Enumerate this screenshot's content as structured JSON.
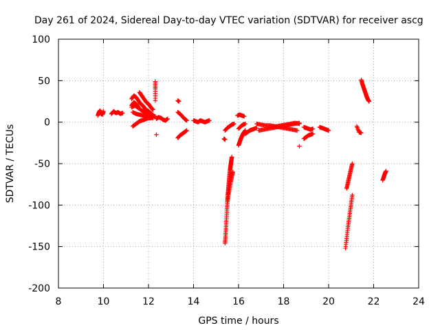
{
  "chart_data": {
    "type": "scatter",
    "title": "Day 261 of 2024, Sidereal Day-to-day VTEC variation (SDTVAR) for receiver ascg",
    "xlabel": "GPS time / hours",
    "ylabel": "SDTVAR / TECUs",
    "xlim": [
      8,
      24
    ],
    "ylim": [
      -200,
      100
    ],
    "xticks": [
      8,
      10,
      12,
      14,
      16,
      18,
      20,
      22,
      24
    ],
    "yticks": [
      -200,
      -150,
      -100,
      -50,
      0,
      50,
      100
    ],
    "xtick_labels": [
      "8",
      "10",
      "12",
      "14",
      "16",
      "18",
      "20",
      "22",
      "24"
    ],
    "ytick_labels": [
      "-200",
      "-150",
      "-100",
      "-50",
      "0",
      "50",
      "100"
    ],
    "grid": true,
    "marker": "+",
    "color": "#ff0000",
    "series": [
      {
        "name": "arc1",
        "x": [
          9.75,
          9.8,
          9.85,
          9.9,
          9.95,
          10.0
        ],
        "y": [
          8,
          12,
          14,
          10,
          9,
          13
        ]
      },
      {
        "name": "arc2",
        "x": [
          10.35,
          10.45,
          10.55,
          10.65,
          10.75,
          10.85
        ],
        "y": [
          10,
          13,
          11,
          12,
          10,
          11
        ]
      },
      {
        "name": "arc3",
        "x": [
          11.25,
          11.35,
          11.45,
          11.55,
          11.65,
          11.75,
          11.85,
          11.95,
          12.05,
          12.15
        ],
        "y": [
          28,
          32,
          30,
          26,
          22,
          20,
          16,
          14,
          12,
          10
        ]
      },
      {
        "name": "arc4",
        "x": [
          11.6,
          11.7,
          11.8,
          11.9,
          12.0,
          12.1,
          12.2
        ],
        "y": [
          36,
          32,
          28,
          24,
          22,
          18,
          15
        ]
      },
      {
        "name": "arc5",
        "x": [
          11.25,
          11.4,
          11.55,
          11.7,
          11.85,
          12.0,
          12.15,
          12.3
        ],
        "y": [
          18,
          20,
          17,
          14,
          12,
          10,
          8,
          7
        ]
      },
      {
        "name": "arc6",
        "x": [
          11.3,
          11.45,
          11.6,
          11.75,
          11.9,
          12.05,
          12.2
        ],
        "y": [
          12,
          10,
          9,
          8,
          7,
          6,
          5
        ]
      },
      {
        "name": "arc7",
        "x": [
          11.3,
          11.4,
          11.5,
          11.6,
          11.7,
          11.8,
          11.9,
          12.0,
          12.1,
          12.2
        ],
        "y": [
          -5,
          -3,
          -1,
          1,
          2,
          3,
          4,
          5,
          5,
          6
        ]
      },
      {
        "name": "arc8",
        "x": [
          11.25,
          11.35,
          11.45,
          11.55
        ],
        "y": [
          20,
          24,
          22,
          18
        ]
      },
      {
        "name": "arc9",
        "x": [
          12.35,
          12.45,
          12.55,
          12.65,
          12.75,
          12.85
        ],
        "y": [
          4,
          6,
          5,
          3,
          2,
          4
        ]
      },
      {
        "name": "arc10",
        "x": [
          12.3,
          12.3,
          12.3
        ],
        "y": [
          49,
          40,
          26
        ]
      },
      {
        "name": "arc11",
        "x": [
          12.35
        ],
        "y": [
          -15
        ]
      },
      {
        "name": "arc12",
        "x": [
          13.3,
          13.35
        ],
        "y": [
          26,
          25
        ]
      },
      {
        "name": "arc13",
        "x": [
          13.3,
          13.4,
          13.5,
          13.6,
          13.7
        ],
        "y": [
          12,
          10,
          7,
          4,
          2
        ]
      },
      {
        "name": "arc14",
        "x": [
          13.3,
          13.4,
          13.5,
          13.6,
          13.7
        ],
        "y": [
          -19,
          -16,
          -14,
          -12,
          -10
        ]
      },
      {
        "name": "arc15",
        "x": [
          14.0,
          14.1,
          14.2,
          14.3,
          14.4,
          14.5,
          14.6,
          14.7
        ],
        "y": [
          2,
          1,
          0,
          2,
          1,
          0,
          1,
          2
        ]
      },
      {
        "name": "arc16",
        "x": [
          15.4,
          15.5,
          15.6,
          15.7,
          15.8
        ],
        "y": [
          -10,
          -7,
          -5,
          -3,
          -2
        ]
      },
      {
        "name": "arc17",
        "x": [
          15.35,
          15.4
        ],
        "y": [
          -20,
          -21
        ]
      },
      {
        "name": "arc18",
        "x": [
          15.4,
          15.42,
          15.44,
          15.46,
          15.48,
          15.5,
          15.52,
          15.54,
          15.56,
          15.58,
          15.6,
          15.62,
          15.64,
          15.66,
          15.68,
          15.7
        ],
        "y": [
          -146,
          -138,
          -128,
          -118,
          -106,
          -96,
          -88,
          -82,
          -76,
          -70,
          -64,
          -58,
          -54,
          -50,
          -46,
          -42
        ]
      },
      {
        "name": "arc19",
        "x": [
          15.5,
          15.55,
          15.6,
          15.65,
          15.7,
          15.75
        ],
        "y": [
          -98,
          -88,
          -80,
          -72,
          -66,
          -60
        ]
      },
      {
        "name": "arc20",
        "x": [
          16.0,
          16.05,
          16.1,
          16.15,
          16.2,
          16.25,
          16.3
        ],
        "y": [
          -28,
          -24,
          -20,
          -17,
          -14,
          -12,
          -10
        ]
      },
      {
        "name": "arc21",
        "x": [
          16.0,
          16.1,
          16.2,
          16.3
        ],
        "y": [
          -8,
          -5,
          -3,
          -2
        ]
      },
      {
        "name": "arc22",
        "x": [
          15.95,
          16.05,
          16.15,
          16.25
        ],
        "y": [
          8,
          9,
          8,
          7
        ]
      },
      {
        "name": "arc23",
        "x": [
          16.3,
          16.4,
          16.5,
          16.6,
          16.7,
          16.8
        ],
        "y": [
          -14,
          -12,
          -10,
          -9,
          -8,
          -7
        ]
      },
      {
        "name": "arc24",
        "x": [
          16.8,
          17.0,
          17.2,
          17.4,
          17.6,
          17.8,
          18.0,
          18.2,
          18.4,
          18.6
        ],
        "y": [
          -2,
          -3,
          -4,
          -4,
          -5,
          -6,
          -7,
          -8,
          -9,
          -10
        ]
      },
      {
        "name": "arc25",
        "x": [
          16.9,
          17.1,
          17.3,
          17.5,
          17.7,
          17.9,
          18.1,
          18.3,
          18.5,
          18.7
        ],
        "y": [
          -10,
          -9,
          -8,
          -7,
          -6,
          -5,
          -4,
          -3,
          -2,
          -1
        ]
      },
      {
        "name": "arc26",
        "x": [
          17.5,
          17.7,
          17.9,
          18.1,
          18.3,
          18.5,
          18.7
        ],
        "y": [
          -6,
          -5,
          -4,
          -3,
          -2,
          -1,
          -2
        ]
      },
      {
        "name": "arc27",
        "x": [
          18.7
        ],
        "y": [
          -29
        ]
      },
      {
        "name": "arc28",
        "x": [
          18.9,
          19.0,
          19.1,
          19.2,
          19.3
        ],
        "y": [
          -6,
          -7,
          -8,
          -9,
          -8
        ]
      },
      {
        "name": "arc29",
        "x": [
          18.9,
          19.0,
          19.1,
          19.2,
          19.3
        ],
        "y": [
          -20,
          -18,
          -16,
          -15,
          -14
        ]
      },
      {
        "name": "arc30",
        "x": [
          19.6,
          19.7,
          19.8,
          19.9,
          20.0
        ],
        "y": [
          -6,
          -7,
          -8,
          -9,
          -10
        ]
      },
      {
        "name": "arc31",
        "x": [
          20.75,
          20.8,
          20.85,
          20.9,
          20.95,
          21.0,
          21.05
        ],
        "y": [
          -152,
          -140,
          -128,
          -118,
          -108,
          -98,
          -88
        ]
      },
      {
        "name": "arc32",
        "x": [
          20.8,
          20.85,
          20.9,
          20.95,
          21.0,
          21.05
        ],
        "y": [
          -80,
          -74,
          -68,
          -62,
          -56,
          -50
        ]
      },
      {
        "name": "arc33",
        "x": [
          21.25,
          21.35,
          21.45
        ],
        "y": [
          -5,
          -12,
          -13
        ]
      },
      {
        "name": "arc34",
        "x": [
          21.45,
          21.5,
          21.55,
          21.6,
          21.65,
          21.7,
          21.75,
          21.8
        ],
        "y": [
          51,
          46,
          42,
          38,
          34,
          30,
          27,
          25
        ]
      },
      {
        "name": "arc35",
        "x": [
          22.4,
          22.45,
          22.5,
          22.55
        ],
        "y": [
          -70,
          -66,
          -62,
          -59
        ]
      }
    ]
  }
}
